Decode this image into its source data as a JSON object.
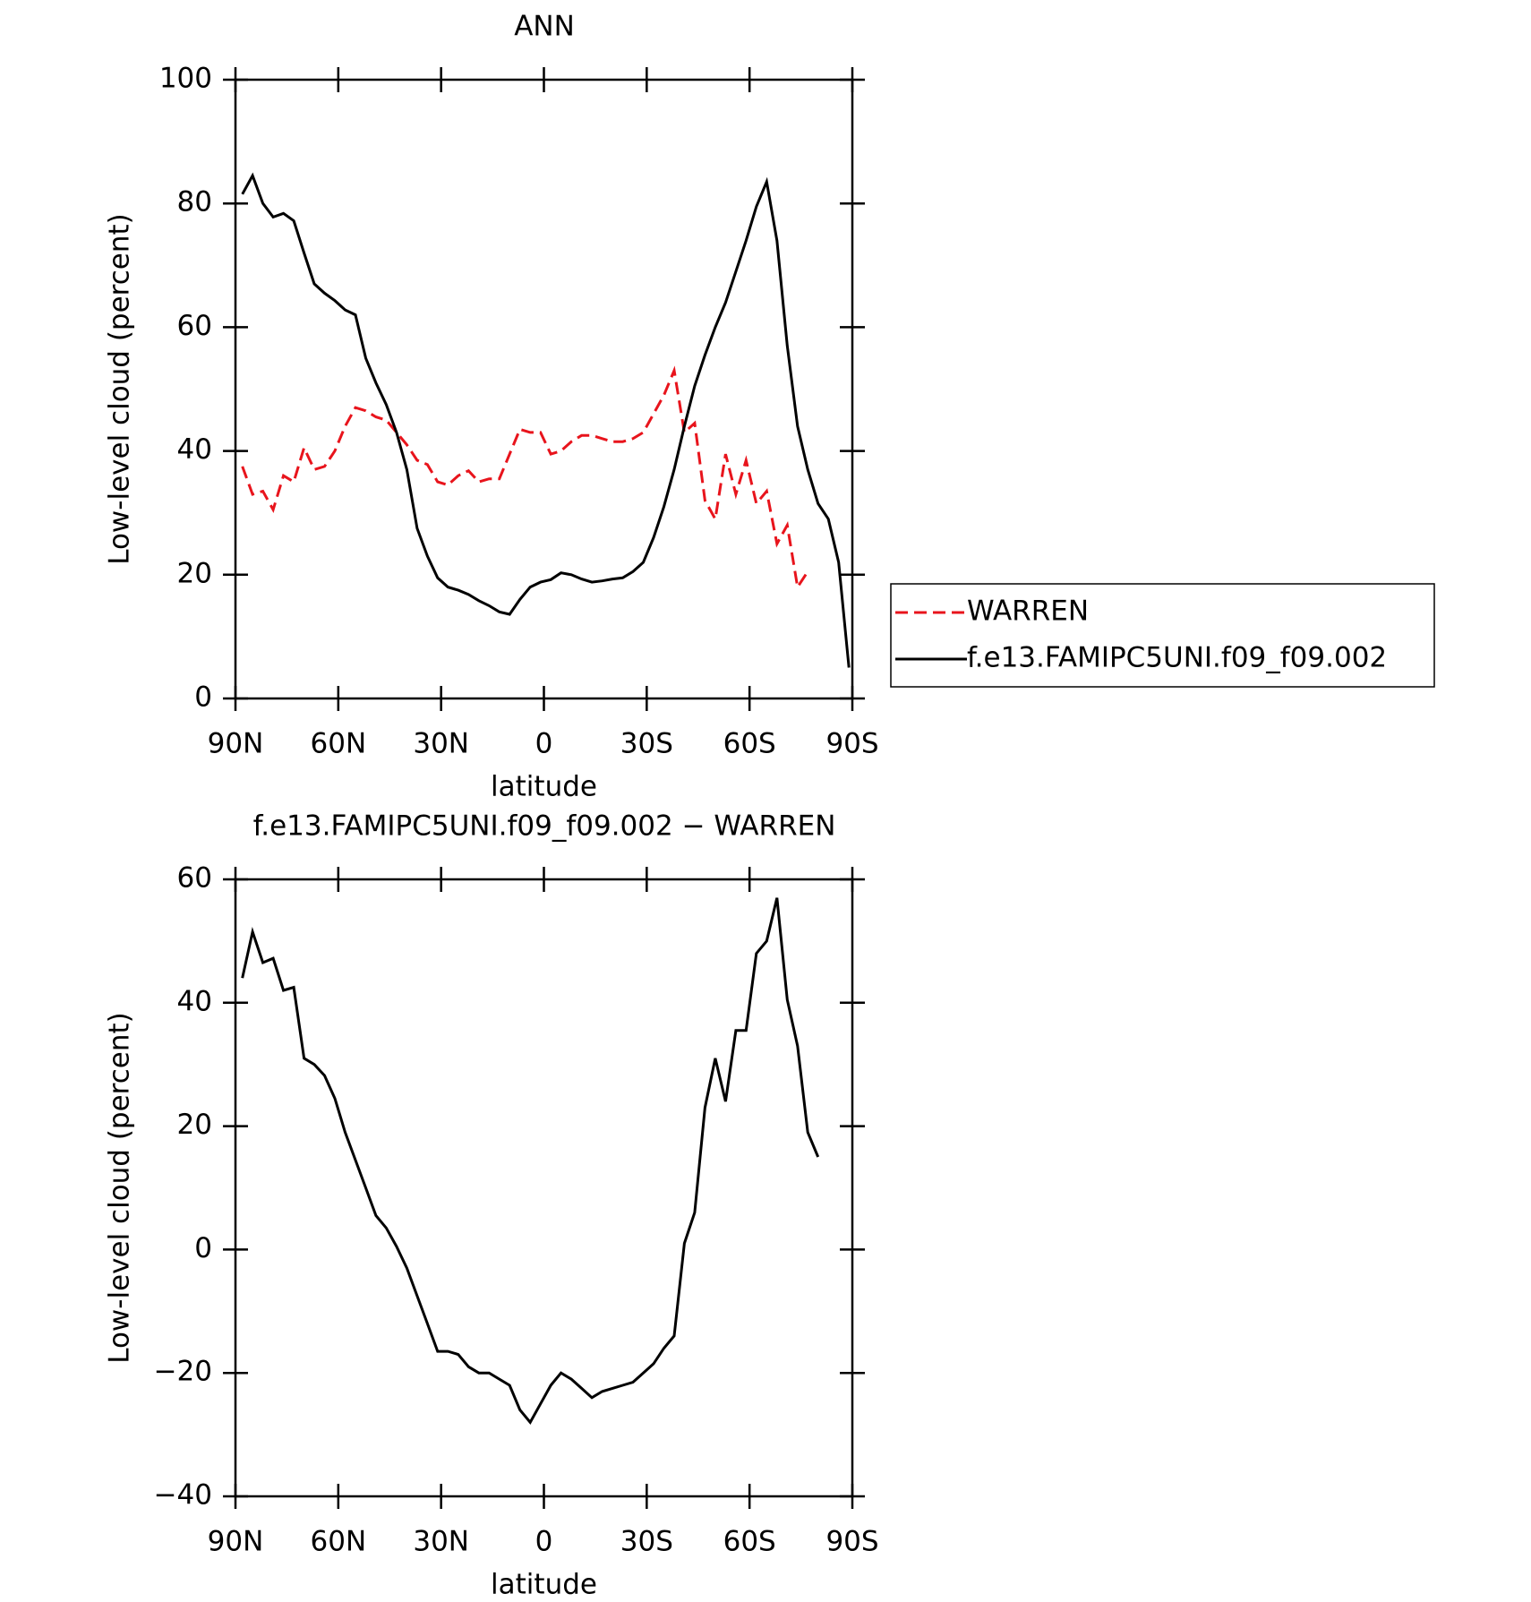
{
  "chart_data": [
    {
      "type": "line",
      "title": "ANN",
      "xlabel": "latitude",
      "ylabel": "Low-level cloud (percent)",
      "x": [
        88,
        85,
        82,
        79,
        76,
        73,
        70,
        67,
        64,
        61,
        58,
        55,
        52,
        49,
        46,
        43,
        40,
        37,
        34,
        31,
        28,
        25,
        22,
        19,
        16,
        13,
        10,
        7,
        4,
        1,
        -2,
        -5,
        -8,
        -11,
        -14,
        -17,
        -20,
        -23,
        -26,
        -29,
        -32,
        -35,
        -38,
        -41,
        -44,
        -47,
        -50,
        -53,
        -56,
        -59,
        -62,
        -65,
        -68,
        -71,
        -74,
        -77,
        -80,
        -83,
        -86,
        -89
      ],
      "xlim": [
        90,
        -90
      ],
      "xticks": [
        {
          "value": 90,
          "label": "90N"
        },
        {
          "value": 60,
          "label": "60N"
        },
        {
          "value": 30,
          "label": "30N"
        },
        0,
        {
          "value": -30,
          "label": "30S"
        },
        {
          "value": -60,
          "label": "60S"
        },
        {
          "value": -90,
          "label": "90S"
        }
      ],
      "ylim": [
        0,
        100
      ],
      "yticks": [
        0,
        20,
        40,
        60,
        80,
        100
      ],
      "legend": "right",
      "series": [
        {
          "name": "WARREN",
          "color": "#e8141c",
          "style": "dashed",
          "values": [
            37.5,
            33,
            33.5,
            30.5,
            36,
            35,
            40.5,
            37,
            37.5,
            40,
            44,
            47,
            46.5,
            45.5,
            45,
            43,
            41,
            38.5,
            37.8,
            35,
            34.5,
            36,
            36.8,
            35,
            35.5,
            35.5,
            39.5,
            43.5,
            43,
            43,
            39.5,
            40,
            41.5,
            42.5,
            42.5,
            42,
            41.5,
            41.5,
            42,
            43,
            46,
            49,
            53,
            43,
            44.5,
            32,
            29,
            39.5,
            33,
            38.5,
            31.5,
            33.5,
            25,
            28,
            18,
            20.5,
            null,
            null,
            null,
            null
          ]
        },
        {
          "name": "f.e13.FAMIPC5UNI.f09_f09.002",
          "color": "#000000",
          "style": "solid",
          "values": [
            81.5,
            84.5,
            80,
            77.8,
            78.4,
            77.2,
            72,
            67,
            65.5,
            64.3,
            62.8,
            62,
            55,
            51,
            47.5,
            43,
            37,
            27.5,
            23,
            19.5,
            18,
            17.5,
            16.8,
            15.8,
            15,
            14,
            13.6,
            16,
            18,
            18.8,
            19.2,
            20.3,
            20,
            19.3,
            18.8,
            19,
            19.3,
            19.5,
            20.5,
            22,
            26,
            31,
            37,
            44,
            50.5,
            55.5,
            60,
            64,
            69,
            74,
            79.5,
            83.5,
            74,
            57,
            44,
            37,
            31.5,
            29,
            22,
            5
          ]
        }
      ]
    },
    {
      "type": "line",
      "title": "f.e13.FAMIPC5UNI.f09_f09.002 − WARREN",
      "xlabel": "latitude",
      "ylabel": "Low-level cloud (percent)",
      "x": [
        88,
        85,
        82,
        79,
        76,
        73,
        70,
        67,
        64,
        61,
        58,
        55,
        52,
        49,
        46,
        43,
        40,
        37,
        34,
        31,
        28,
        25,
        22,
        19,
        16,
        13,
        10,
        7,
        4,
        1,
        -2,
        -5,
        -8,
        -11,
        -14,
        -17,
        -20,
        -23,
        -26,
        -29,
        -32,
        -35,
        -38,
        -41,
        -44,
        -47,
        -50,
        -53,
        -56,
        -59,
        -62,
        -65,
        -68,
        -71,
        -74,
        -77,
        -80,
        -83,
        -86,
        -89
      ],
      "xlim": [
        90,
        -90
      ],
      "xticks": [
        {
          "value": 90,
          "label": "90N"
        },
        {
          "value": 60,
          "label": "60N"
        },
        {
          "value": 30,
          "label": "30N"
        },
        0,
        {
          "value": -30,
          "label": "30S"
        },
        {
          "value": -60,
          "label": "60S"
        },
        {
          "value": -90,
          "label": "90S"
        }
      ],
      "ylim": [
        -40,
        60
      ],
      "yticks": [
        {
          "value": -40,
          "label": "−40"
        },
        {
          "value": -20,
          "label": "−20"
        },
        0,
        20,
        40,
        60
      ],
      "series": [
        {
          "color": "#000000",
          "style": "solid",
          "values": [
            44,
            51.5,
            46.5,
            47.2,
            42,
            42.5,
            31,
            30,
            28.2,
            24.5,
            19,
            14.5,
            10,
            5.5,
            3.5,
            0.5,
            -3,
            -7.5,
            -12,
            -16.5,
            -16.5,
            -17,
            -19,
            -20,
            -20,
            -21,
            -22,
            -26,
            -28,
            -25,
            -22,
            -20,
            -21,
            -22.5,
            -24,
            -23,
            -22.5,
            -22,
            -21.5,
            -20,
            -18.5,
            -16,
            -14,
            1,
            6,
            23,
            31,
            24,
            35.5,
            35.5,
            48,
            50,
            57,
            40.5,
            33,
            19,
            15,
            null,
            null,
            null
          ]
        }
      ]
    }
  ]
}
